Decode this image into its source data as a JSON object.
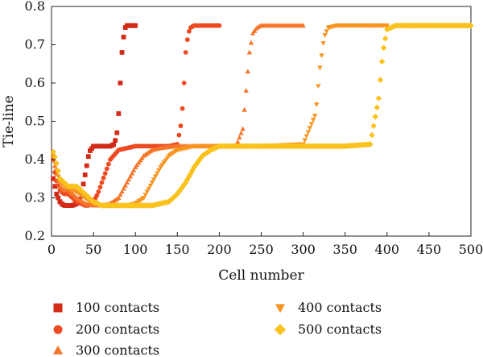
{
  "chart_data": {
    "type": "scatter",
    "xlabel": "Cell number",
    "ylabel": "Tie-line",
    "xlim": [
      0,
      500
    ],
    "ylim": [
      0.2,
      0.8
    ],
    "x_ticks": [
      0,
      50,
      100,
      150,
      200,
      250,
      300,
      350,
      400,
      450,
      500
    ],
    "y_ticks": [
      0.2,
      0.3,
      0.4,
      0.5,
      0.6,
      0.7,
      0.8
    ],
    "x_tick_labels": [
      "0",
      "50",
      "100",
      "150",
      "200",
      "250",
      "300",
      "350",
      "400",
      "450",
      "500"
    ],
    "y_tick_labels": [
      "0.2",
      "0.3",
      "0.4",
      "0.5",
      "0.6",
      "0.7",
      "0.8"
    ],
    "grid": false,
    "legend_position": "bottom",
    "series": [
      {
        "name": "100 contacts",
        "marker": "square",
        "color": "#d42a18",
        "x": [
          2,
          4,
          6,
          8,
          10,
          12,
          15,
          20,
          25,
          30,
          35,
          40,
          45,
          50,
          60,
          70,
          75,
          78,
          80,
          82,
          84,
          86,
          88,
          90,
          95,
          100
        ],
        "y": [
          0.35,
          0.33,
          0.31,
          0.3,
          0.29,
          0.285,
          0.28,
          0.28,
          0.28,
          0.285,
          0.3,
          0.36,
          0.42,
          0.435,
          0.435,
          0.435,
          0.44,
          0.47,
          0.52,
          0.6,
          0.68,
          0.72,
          0.745,
          0.75,
          0.75,
          0.75
        ]
      },
      {
        "name": "200 contacts",
        "marker": "circle",
        "color": "#ee4a22",
        "x": [
          2,
          5,
          10,
          15,
          20,
          25,
          30,
          35,
          40,
          45,
          50,
          55,
          60,
          70,
          80,
          90,
          100,
          120,
          140,
          150,
          155,
          158,
          160,
          163,
          166,
          170,
          180,
          190,
          200
        ],
        "y": [
          0.4,
          0.35,
          0.32,
          0.31,
          0.31,
          0.3,
          0.29,
          0.285,
          0.28,
          0.28,
          0.29,
          0.31,
          0.34,
          0.4,
          0.425,
          0.43,
          0.435,
          0.435,
          0.435,
          0.44,
          0.5,
          0.6,
          0.68,
          0.73,
          0.745,
          0.75,
          0.75,
          0.75,
          0.75
        ]
      },
      {
        "name": "300 contacts",
        "marker": "triangle-up",
        "color": "#f5762a",
        "x": [
          2,
          5,
          10,
          15,
          20,
          30,
          40,
          50,
          60,
          70,
          80,
          90,
          100,
          110,
          120,
          130,
          150,
          180,
          200,
          220,
          228,
          232,
          236,
          240,
          245,
          250,
          270,
          300
        ],
        "y": [
          0.41,
          0.37,
          0.33,
          0.32,
          0.32,
          0.3,
          0.285,
          0.28,
          0.28,
          0.285,
          0.3,
          0.34,
          0.38,
          0.41,
          0.425,
          0.43,
          0.435,
          0.435,
          0.435,
          0.435,
          0.48,
          0.58,
          0.68,
          0.73,
          0.745,
          0.75,
          0.75,
          0.75
        ]
      },
      {
        "name": "400 contacts",
        "marker": "triangle-down",
        "color": "#f89420",
        "x": [
          2,
          5,
          10,
          20,
          30,
          40,
          50,
          60,
          70,
          80,
          90,
          100,
          110,
          120,
          130,
          140,
          150,
          160,
          170,
          200,
          250,
          300,
          315,
          320,
          325,
          330,
          340,
          360,
          380,
          400
        ],
        "y": [
          0.41,
          0.38,
          0.34,
          0.325,
          0.315,
          0.3,
          0.285,
          0.28,
          0.28,
          0.28,
          0.28,
          0.285,
          0.3,
          0.34,
          0.38,
          0.41,
          0.425,
          0.43,
          0.435,
          0.435,
          0.435,
          0.44,
          0.52,
          0.64,
          0.72,
          0.745,
          0.75,
          0.75,
          0.75,
          0.75
        ]
      },
      {
        "name": "500 contacts",
        "marker": "diamond",
        "color": "#fac21c",
        "x": [
          2,
          5,
          10,
          20,
          30,
          40,
          50,
          60,
          80,
          100,
          120,
          130,
          140,
          150,
          160,
          170,
          180,
          190,
          200,
          250,
          300,
          350,
          380,
          390,
          395,
          400,
          410,
          450,
          500
        ],
        "y": [
          0.42,
          0.4,
          0.35,
          0.33,
          0.33,
          0.31,
          0.29,
          0.28,
          0.28,
          0.28,
          0.28,
          0.285,
          0.29,
          0.31,
          0.34,
          0.38,
          0.41,
          0.425,
          0.435,
          0.435,
          0.435,
          0.435,
          0.44,
          0.56,
          0.68,
          0.74,
          0.75,
          0.75,
          0.75
        ]
      }
    ]
  }
}
